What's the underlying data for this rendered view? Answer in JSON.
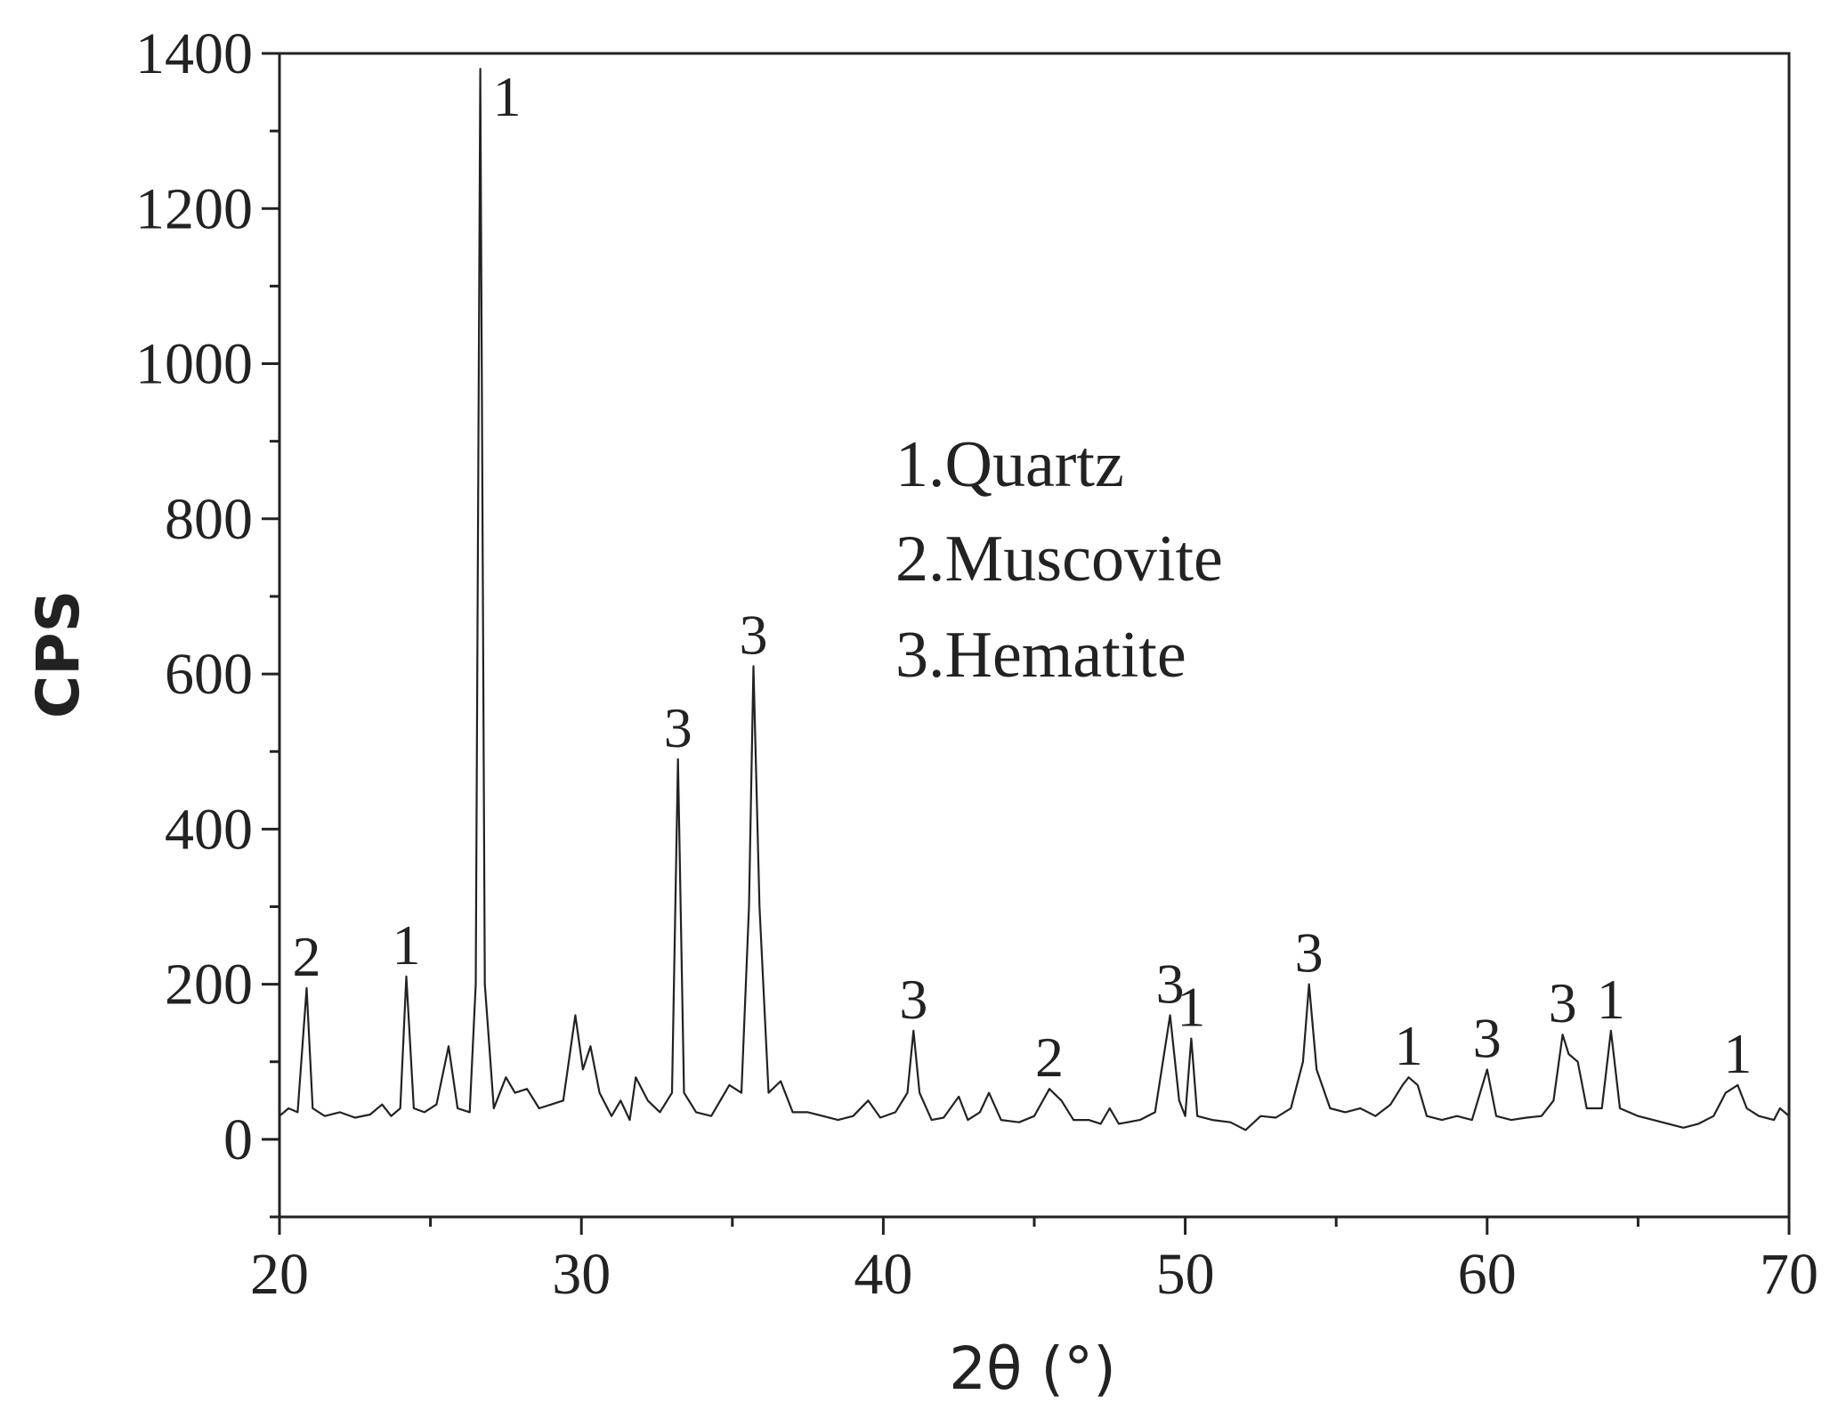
{
  "chart_data": {
    "type": "line",
    "xlabel": "2θ (°)",
    "ylabel": "CPS",
    "legend_text": [
      "1.Quartz",
      "2.Muscovite",
      "3.Hematite"
    ],
    "color": "#222222",
    "xlim": [
      20,
      70
    ],
    "xticks": [
      20,
      30,
      40,
      50,
      60,
      70
    ],
    "xminorticks": [
      25,
      35,
      45,
      55,
      65
    ],
    "ylim": [
      -100,
      1400
    ],
    "yticks": [
      0,
      200,
      400,
      600,
      800,
      1000,
      1200,
      1400
    ],
    "yminorticks": [
      -100,
      100,
      300,
      500,
      700,
      900,
      1100,
      1300
    ],
    "x": [
      20.0,
      20.3,
      20.6,
      20.9,
      21.1,
      21.5,
      22.0,
      22.5,
      23.0,
      23.4,
      23.7,
      24.0,
      24.2,
      24.45,
      24.8,
      25.2,
      25.6,
      25.9,
      26.3,
      26.5,
      26.65,
      26.8,
      27.1,
      27.5,
      27.8,
      28.2,
      28.6,
      29.0,
      29.4,
      29.8,
      30.05,
      30.3,
      30.6,
      31.0,
      31.3,
      31.6,
      31.8,
      32.2,
      32.6,
      33.0,
      33.2,
      33.4,
      33.8,
      34.3,
      34.9,
      35.3,
      35.55,
      35.7,
      35.9,
      36.2,
      36.6,
      37.0,
      37.5,
      38.0,
      38.5,
      39.0,
      39.5,
      39.9,
      40.4,
      40.8,
      41.0,
      41.2,
      41.6,
      42.0,
      42.5,
      42.8,
      43.2,
      43.5,
      43.9,
      44.5,
      45.0,
      45.5,
      45.9,
      46.3,
      46.8,
      47.2,
      47.5,
      47.8,
      48.5,
      49.0,
      49.5,
      49.8,
      50.0,
      50.2,
      50.4,
      50.9,
      51.5,
      52.0,
      52.5,
      53.0,
      53.5,
      53.9,
      54.1,
      54.35,
      54.8,
      55.3,
      55.8,
      56.3,
      56.8,
      57.2,
      57.4,
      57.7,
      58.0,
      58.5,
      59.0,
      59.5,
      60.0,
      60.3,
      60.8,
      61.3,
      61.8,
      62.2,
      62.5,
      62.7,
      63.0,
      63.3,
      63.8,
      64.1,
      64.4,
      65.0,
      65.5,
      66.0,
      66.5,
      67.0,
      67.5,
      67.9,
      68.3,
      68.6,
      69.0,
      69.5,
      69.7,
      70.0
    ],
    "values": [
      30,
      40,
      35,
      195,
      40,
      30,
      35,
      28,
      32,
      45,
      30,
      40,
      210,
      40,
      35,
      45,
      120,
      40,
      35,
      200,
      1380,
      200,
      40,
      80,
      60,
      65,
      40,
      45,
      50,
      160,
      90,
      120,
      60,
      30,
      50,
      25,
      80,
      50,
      35,
      60,
      490,
      60,
      35,
      30,
      70,
      60,
      300,
      610,
      300,
      60,
      75,
      35,
      35,
      30,
      25,
      30,
      50,
      28,
      35,
      60,
      140,
      60,
      25,
      28,
      55,
      25,
      35,
      60,
      25,
      22,
      30,
      65,
      50,
      25,
      25,
      20,
      40,
      20,
      25,
      35,
      160,
      50,
      30,
      130,
      30,
      25,
      22,
      12,
      30,
      28,
      40,
      100,
      200,
      90,
      40,
      35,
      40,
      30,
      45,
      70,
      80,
      70,
      30,
      25,
      30,
      25,
      90,
      30,
      25,
      28,
      30,
      50,
      135,
      110,
      100,
      40,
      40,
      140,
      40,
      30,
      25,
      20,
      15,
      20,
      30,
      60,
      70,
      40,
      30,
      25,
      40,
      30
    ],
    "annotations": [
      {
        "text": "2",
        "x": 20.9
      },
      {
        "text": "1",
        "x": 24.2
      },
      {
        "text": "1",
        "x": 26.65
      },
      {
        "text": "3",
        "x": 33.2
      },
      {
        "text": "3",
        "x": 35.7
      },
      {
        "text": "3",
        "x": 41.0
      },
      {
        "text": "2",
        "x": 45.5
      },
      {
        "text": "3",
        "x": 49.5
      },
      {
        "text": "1",
        "x": 50.2
      },
      {
        "text": "3",
        "x": 54.1
      },
      {
        "text": "1",
        "x": 57.4
      },
      {
        "text": "3",
        "x": 60.0
      },
      {
        "text": "3",
        "x": 62.5
      },
      {
        "text": "1",
        "x": 64.1
      },
      {
        "text": "1",
        "x": 68.3
      }
    ]
  }
}
